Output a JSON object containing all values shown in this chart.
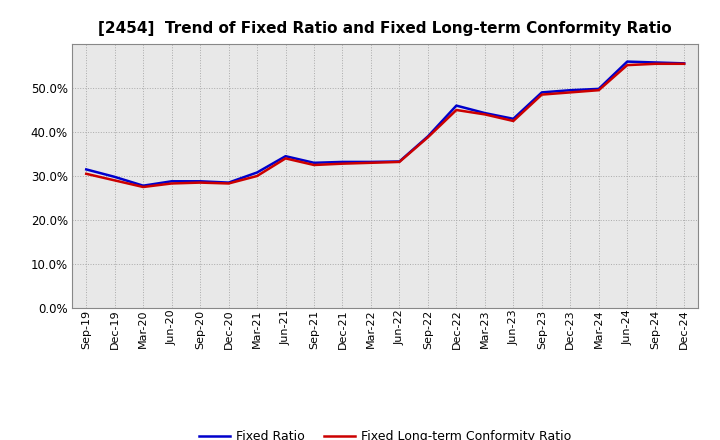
{
  "title": "[2454]  Trend of Fixed Ratio and Fixed Long-term Conformity Ratio",
  "x_labels": [
    "Sep-19",
    "Dec-19",
    "Mar-20",
    "Jun-20",
    "Sep-20",
    "Dec-20",
    "Mar-21",
    "Jun-21",
    "Sep-21",
    "Dec-21",
    "Mar-22",
    "Jun-22",
    "Sep-22",
    "Dec-22",
    "Mar-23",
    "Jun-23",
    "Sep-23",
    "Dec-23",
    "Mar-24",
    "Jun-24",
    "Sep-24",
    "Dec-24"
  ],
  "fixed_ratio": [
    0.315,
    0.298,
    0.278,
    0.288,
    0.288,
    0.285,
    0.308,
    0.345,
    0.33,
    0.332,
    0.332,
    0.333,
    0.39,
    0.46,
    0.443,
    0.43,
    0.49,
    0.495,
    0.498,
    0.56,
    0.558,
    0.556
  ],
  "fixed_lt_ratio": [
    0.305,
    0.29,
    0.275,
    0.283,
    0.285,
    0.283,
    0.3,
    0.34,
    0.325,
    0.328,
    0.33,
    0.332,
    0.388,
    0.45,
    0.44,
    0.425,
    0.485,
    0.49,
    0.495,
    0.552,
    0.555,
    0.555
  ],
  "fixed_ratio_color": "#0000cc",
  "fixed_lt_ratio_color": "#cc0000",
  "ylim": [
    0.0,
    0.6
  ],
  "yticks": [
    0.0,
    0.1,
    0.2,
    0.3,
    0.4,
    0.5
  ],
  "background_color": "#ffffff",
  "plot_bg_color": "#e8e8e8",
  "grid_color": "#aaaaaa",
  "legend_fixed": "Fixed Ratio",
  "legend_lt": "Fixed Long-term Conformity Ratio",
  "title_fontsize": 11,
  "tick_fontsize": 8,
  "ytick_fontsize": 8.5,
  "line_width": 1.8
}
